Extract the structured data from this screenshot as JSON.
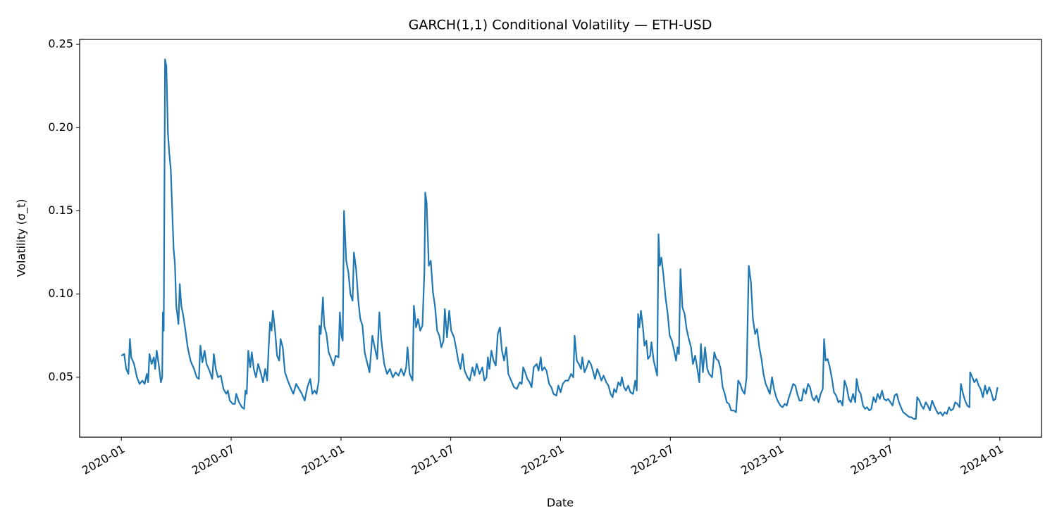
{
  "chart_data": {
    "type": "line",
    "title": "GARCH(1,1) Conditional Volatility — ETH-USD",
    "x_label": "Date",
    "y_label": "Volatility (σ_t)",
    "color": "#1f77b4",
    "xlim": [
      2019.81,
      2024.19
    ],
    "ylim": [
      0.014,
      0.253
    ],
    "xticks": [
      {
        "value": 2020,
        "label": "2020-01"
      },
      {
        "value": 2020.5,
        "label": "2020-07"
      },
      {
        "value": 2021,
        "label": "2021-01"
      },
      {
        "value": 2021.5,
        "label": "2021-07"
      },
      {
        "value": 2022,
        "label": "2022-01"
      },
      {
        "value": 2022.5,
        "label": "2022-07"
      },
      {
        "value": 2023,
        "label": "2023-01"
      },
      {
        "value": 2023.5,
        "label": "2023-07"
      },
      {
        "value": 2024,
        "label": "2024-01"
      }
    ],
    "yticks": [
      0.05,
      {
        "value": 0.1,
        "label": "0.10"
      },
      0.15,
      {
        "value": 0.2,
        "label": "0.20"
      },
      0.25
    ],
    "x": [
      2020.0,
      2020.013,
      2020.022,
      2020.032,
      2020.039,
      2020.045,
      2020.058,
      2020.071,
      2020.083,
      2020.096,
      2020.106,
      2020.116,
      2020.122,
      2020.128,
      2020.138,
      2020.148,
      2020.154,
      2020.161,
      2020.17,
      2020.18,
      2020.186,
      2020.189,
      2020.193,
      2020.199,
      2020.205,
      2020.212,
      2020.218,
      2020.225,
      2020.238,
      2020.244,
      2020.25,
      2020.26,
      2020.266,
      2020.273,
      2020.282,
      2020.292,
      2020.302,
      2020.315,
      2020.321,
      2020.331,
      2020.343,
      2020.353,
      2020.36,
      2020.369,
      2020.379,
      2020.388,
      2020.401,
      2020.414,
      2020.421,
      2020.43,
      2020.44,
      2020.453,
      2020.465,
      2020.478,
      2020.485,
      2020.494,
      2020.507,
      2020.517,
      2020.523,
      2020.536,
      2020.549,
      2020.559,
      2020.565,
      2020.571,
      2020.578,
      2020.587,
      2020.594,
      2020.603,
      2020.613,
      2020.623,
      2020.636,
      2020.645,
      2020.655,
      2020.664,
      2020.671,
      2020.677,
      2020.684,
      2020.69,
      2020.7,
      2020.709,
      2020.719,
      2020.725,
      2020.735,
      2020.745,
      2020.758,
      2020.77,
      2020.783,
      2020.796,
      2020.809,
      2020.822,
      2020.835,
      2020.847,
      2020.86,
      2020.87,
      2020.88,
      2020.889,
      2020.899,
      2020.902,
      2020.908,
      2020.918,
      2020.924,
      2020.934,
      2020.944,
      2020.953,
      2020.966,
      2020.976,
      2020.989,
      2020.995,
      2021.002,
      2021.008,
      2021.014,
      2021.024,
      2021.034,
      2021.043,
      2021.053,
      2021.059,
      2021.069,
      2021.079,
      2021.088,
      2021.098,
      2021.108,
      2021.117,
      2021.13,
      2021.143,
      2021.152,
      2021.165,
      2021.175,
      2021.184,
      2021.197,
      2021.21,
      2021.223,
      2021.236,
      2021.249,
      2021.262,
      2021.274,
      2021.287,
      2021.297,
      2021.303,
      2021.313,
      2021.326,
      2021.332,
      2021.342,
      2021.351,
      2021.361,
      2021.371,
      2021.38,
      2021.384,
      2021.39,
      2021.4,
      2021.409,
      2021.419,
      2021.428,
      2021.438,
      2021.448,
      2021.457,
      2021.467,
      2021.473,
      2021.483,
      2021.493,
      2021.502,
      2021.515,
      2021.525,
      2021.534,
      2021.544,
      2021.554,
      2021.563,
      2021.576,
      2021.586,
      2021.599,
      2021.608,
      2021.618,
      2021.631,
      2021.644,
      2021.653,
      2021.663,
      2021.669,
      2021.676,
      2021.685,
      2021.695,
      2021.705,
      2021.714,
      2021.724,
      2021.733,
      2021.743,
      2021.753,
      2021.762,
      2021.775,
      2021.788,
      2021.801,
      2021.814,
      2021.823,
      2021.83,
      2021.839,
      2021.849,
      2021.859,
      2021.868,
      2021.878,
      2021.891,
      2021.9,
      2021.91,
      2021.916,
      2021.926,
      2021.936,
      2021.948,
      2021.958,
      2021.968,
      2021.981,
      2021.99,
      2022.0,
      2022.01,
      2022.022,
      2022.035,
      2022.048,
      2022.058,
      2022.064,
      2022.074,
      2022.083,
      2022.093,
      2022.099,
      2022.109,
      2022.119,
      2022.128,
      2022.138,
      2022.147,
      2022.157,
      2022.167,
      2022.176,
      2022.186,
      2022.196,
      2022.208,
      2022.218,
      2022.228,
      2022.237,
      2022.244,
      2022.253,
      2022.263,
      2022.273,
      2022.279,
      2022.289,
      2022.298,
      2022.308,
      2022.318,
      2022.33,
      2022.34,
      2022.347,
      2022.353,
      2022.359,
      2022.366,
      2022.375,
      2022.382,
      2022.391,
      2022.398,
      2022.408,
      2022.414,
      2022.424,
      2022.433,
      2022.44,
      2022.446,
      2022.452,
      2022.459,
      2022.468,
      2022.478,
      2022.488,
      2022.497,
      2022.507,
      2022.517,
      2022.526,
      2022.533,
      2022.539,
      2022.546,
      2022.555,
      2022.565,
      2022.574,
      2022.584,
      2022.594,
      2022.603,
      2022.613,
      2022.623,
      2022.632,
      2022.639,
      2022.648,
      2022.658,
      2022.668,
      2022.677,
      2022.69,
      2022.7,
      2022.709,
      2022.719,
      2022.729,
      2022.738,
      2022.748,
      2022.757,
      2022.767,
      2022.777,
      2022.789,
      2022.799,
      2022.809,
      2022.818,
      2022.828,
      2022.838,
      2022.847,
      2022.857,
      2022.867,
      2022.876,
      2022.886,
      2022.895,
      2022.905,
      2022.915,
      2022.924,
      2022.934,
      2022.944,
      2022.953,
      2022.963,
      2022.972,
      2022.982,
      2022.992,
      2023.001,
      2023.011,
      2023.021,
      2023.03,
      2023.04,
      2023.05,
      2023.059,
      2023.069,
      2023.078,
      2023.088,
      2023.098,
      2023.107,
      2023.117,
      2023.127,
      2023.136,
      2023.146,
      2023.155,
      2023.165,
      2023.175,
      2023.184,
      2023.194,
      2023.2,
      2023.207,
      2023.216,
      2023.226,
      2023.236,
      2023.245,
      2023.255,
      2023.265,
      2023.274,
      2023.284,
      2023.293,
      2023.303,
      2023.313,
      2023.322,
      2023.332,
      2023.342,
      2023.348,
      2023.358,
      2023.367,
      2023.377,
      2023.387,
      2023.396,
      2023.406,
      2023.415,
      2023.425,
      2023.435,
      2023.444,
      2023.454,
      2023.464,
      2023.473,
      2023.483,
      2023.492,
      2023.502,
      2023.512,
      2023.521,
      2023.531,
      2023.541,
      2023.55,
      2023.56,
      2023.57,
      2023.579,
      2023.589,
      2023.598,
      2023.608,
      2023.618,
      2023.624,
      2023.634,
      2023.643,
      2023.653,
      2023.663,
      2023.672,
      2023.682,
      2023.692,
      2023.701,
      2023.711,
      2023.72,
      2023.73,
      2023.74,
      2023.749,
      2023.759,
      2023.769,
      2023.778,
      2023.788,
      2023.797,
      2023.807,
      2023.817,
      2023.823,
      2023.833,
      2023.842,
      2023.852,
      2023.862,
      2023.865,
      2023.875,
      2023.884,
      2023.894,
      2023.904,
      2023.913,
      2023.923,
      2023.933,
      2023.942,
      2023.952,
      2023.961,
      2023.971,
      2023.98,
      2023.99
    ],
    "values": [
      0.063,
      0.064,
      0.055,
      0.052,
      0.073,
      0.062,
      0.058,
      0.05,
      0.046,
      0.048,
      0.046,
      0.052,
      0.047,
      0.064,
      0.058,
      0.062,
      0.055,
      0.066,
      0.058,
      0.047,
      0.05,
      0.089,
      0.078,
      0.241,
      0.237,
      0.197,
      0.185,
      0.175,
      0.127,
      0.118,
      0.093,
      0.082,
      0.106,
      0.093,
      0.087,
      0.078,
      0.068,
      0.06,
      0.058,
      0.055,
      0.05,
      0.049,
      0.069,
      0.059,
      0.066,
      0.058,
      0.054,
      0.049,
      0.064,
      0.055,
      0.05,
      0.051,
      0.043,
      0.04,
      0.042,
      0.036,
      0.034,
      0.034,
      0.04,
      0.035,
      0.032,
      0.031,
      0.042,
      0.04,
      0.066,
      0.056,
      0.065,
      0.055,
      0.05,
      0.058,
      0.052,
      0.047,
      0.055,
      0.048,
      0.068,
      0.083,
      0.078,
      0.09,
      0.078,
      0.063,
      0.06,
      0.073,
      0.068,
      0.053,
      0.048,
      0.044,
      0.04,
      0.046,
      0.043,
      0.04,
      0.036,
      0.044,
      0.049,
      0.04,
      0.042,
      0.04,
      0.048,
      0.081,
      0.076,
      0.098,
      0.081,
      0.076,
      0.065,
      0.062,
      0.057,
      0.063,
      0.062,
      0.089,
      0.075,
      0.072,
      0.15,
      0.12,
      0.113,
      0.1,
      0.096,
      0.125,
      0.115,
      0.096,
      0.085,
      0.081,
      0.065,
      0.06,
      0.053,
      0.075,
      0.069,
      0.061,
      0.089,
      0.072,
      0.058,
      0.052,
      0.055,
      0.05,
      0.053,
      0.051,
      0.055,
      0.051,
      0.056,
      0.068,
      0.052,
      0.048,
      0.093,
      0.08,
      0.085,
      0.078,
      0.081,
      0.114,
      0.161,
      0.155,
      0.117,
      0.12,
      0.101,
      0.093,
      0.078,
      0.075,
      0.068,
      0.072,
      0.091,
      0.074,
      0.09,
      0.078,
      0.074,
      0.067,
      0.06,
      0.055,
      0.064,
      0.054,
      0.05,
      0.048,
      0.056,
      0.051,
      0.058,
      0.052,
      0.056,
      0.048,
      0.05,
      0.062,
      0.055,
      0.066,
      0.06,
      0.057,
      0.076,
      0.08,
      0.066,
      0.06,
      0.068,
      0.052,
      0.048,
      0.044,
      0.043,
      0.047,
      0.046,
      0.056,
      0.053,
      0.049,
      0.047,
      0.044,
      0.056,
      0.058,
      0.054,
      0.062,
      0.054,
      0.056,
      0.054,
      0.046,
      0.044,
      0.04,
      0.039,
      0.045,
      0.041,
      0.046,
      0.048,
      0.048,
      0.052,
      0.05,
      0.075,
      0.06,
      0.058,
      0.055,
      0.062,
      0.053,
      0.056,
      0.06,
      0.058,
      0.054,
      0.049,
      0.055,
      0.052,
      0.048,
      0.051,
      0.047,
      0.045,
      0.04,
      0.038,
      0.043,
      0.041,
      0.047,
      0.045,
      0.05,
      0.044,
      0.042,
      0.045,
      0.041,
      0.04,
      0.048,
      0.042,
      0.088,
      0.08,
      0.09,
      0.08,
      0.069,
      0.072,
      0.061,
      0.063,
      0.071,
      0.06,
      0.055,
      0.051,
      0.136,
      0.117,
      0.122,
      0.112,
      0.098,
      0.088,
      0.075,
      0.072,
      0.066,
      0.06,
      0.068,
      0.064,
      0.115,
      0.092,
      0.088,
      0.079,
      0.073,
      0.068,
      0.058,
      0.063,
      0.055,
      0.047,
      0.07,
      0.053,
      0.068,
      0.055,
      0.052,
      0.05,
      0.065,
      0.061,
      0.06,
      0.055,
      0.044,
      0.04,
      0.035,
      0.034,
      0.03,
      0.03,
      0.029,
      0.048,
      0.046,
      0.042,
      0.04,
      0.05,
      0.117,
      0.107,
      0.085,
      0.076,
      0.079,
      0.068,
      0.061,
      0.052,
      0.046,
      0.043,
      0.04,
      0.05,
      0.043,
      0.038,
      0.035,
      0.033,
      0.032,
      0.034,
      0.033,
      0.038,
      0.042,
      0.046,
      0.045,
      0.04,
      0.036,
      0.036,
      0.043,
      0.04,
      0.046,
      0.044,
      0.038,
      0.036,
      0.039,
      0.035,
      0.04,
      0.043,
      0.073,
      0.06,
      0.061,
      0.056,
      0.049,
      0.041,
      0.039,
      0.035,
      0.036,
      0.033,
      0.048,
      0.044,
      0.037,
      0.035,
      0.04,
      0.035,
      0.049,
      0.042,
      0.04,
      0.033,
      0.031,
      0.032,
      0.03,
      0.031,
      0.038,
      0.035,
      0.04,
      0.037,
      0.042,
      0.037,
      0.036,
      0.037,
      0.035,
      0.033,
      0.039,
      0.04,
      0.035,
      0.032,
      0.029,
      0.028,
      0.027,
      0.026,
      0.026,
      0.025,
      0.025,
      0.038,
      0.036,
      0.033,
      0.031,
      0.035,
      0.033,
      0.03,
      0.036,
      0.033,
      0.03,
      0.028,
      0.029,
      0.027,
      0.029,
      0.028,
      0.032,
      0.03,
      0.031,
      0.035,
      0.034,
      0.032,
      0.046,
      0.04,
      0.036,
      0.033,
      0.032,
      0.053,
      0.05,
      0.047,
      0.049,
      0.045,
      0.043,
      0.038,
      0.045,
      0.04,
      0.044,
      0.041,
      0.036,
      0.037,
      0.044
    ]
  }
}
